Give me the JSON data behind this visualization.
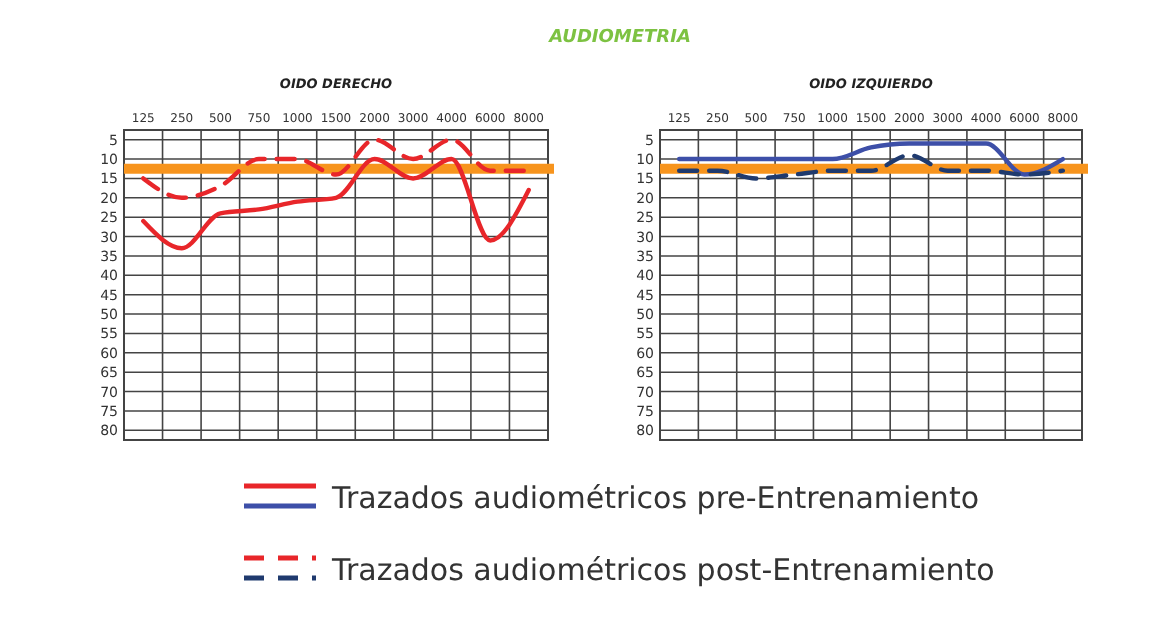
{
  "chart_data": [
    {
      "type": "line",
      "title": "AUDIOMETRIA",
      "subtitle": "OIDO DERECHO",
      "categories": [
        "125",
        "250",
        "500",
        "750",
        "1000",
        "1500",
        "2000",
        "3000",
        "4000",
        "6000",
        "8000"
      ],
      "ylim": [
        82.5,
        2.5
      ],
      "yticks": [
        5,
        10,
        15,
        20,
        25,
        30,
        35,
        40,
        45,
        50,
        55,
        60,
        65,
        70,
        75,
        80
      ],
      "grid": true,
      "ref_lines": [
        {
          "axis": "y",
          "value": 12.5,
          "color": "#f7941d"
        }
      ],
      "series": [
        {
          "color": "#e8262a",
          "values": [
            26,
            33,
            24,
            23,
            21,
            20,
            10,
            15,
            10,
            31,
            18
          ]
        },
        {
          "color": "#e8262a",
          "line_style": "dashed",
          "values": [
            15,
            20,
            17,
            10,
            10,
            14,
            5,
            10,
            5,
            13,
            13
          ]
        }
      ]
    },
    {
      "type": "line",
      "subtitle": "OIDO IZQUIERDO",
      "categories": [
        "125",
        "250",
        "500",
        "750",
        "1000",
        "1500",
        "2000",
        "3000",
        "4000",
        "6000",
        "8000"
      ],
      "ylim": [
        82.5,
        2.5
      ],
      "yticks": [
        5,
        10,
        15,
        20,
        25,
        30,
        35,
        40,
        45,
        50,
        55,
        60,
        65,
        70,
        75,
        80
      ],
      "grid": true,
      "legend": "bottom",
      "ref_lines": [
        {
          "axis": "y",
          "value": 12.5,
          "color": "#f7941d"
        }
      ],
      "series": [
        {
          "name": "Trazados audiométricos pre-Entrenamiento",
          "color": "#3d4fa8",
          "values": [
            10,
            10,
            10,
            10,
            10,
            7,
            6,
            6,
            6,
            14,
            10
          ]
        },
        {
          "name": "Trazados audiométricos post-Entrenamiento",
          "color": "#1f3a6e",
          "line_style": "dashed",
          "values": [
            13,
            13,
            15,
            14,
            13,
            13,
            9,
            13,
            13,
            14,
            13
          ]
        }
      ]
    }
  ]
}
